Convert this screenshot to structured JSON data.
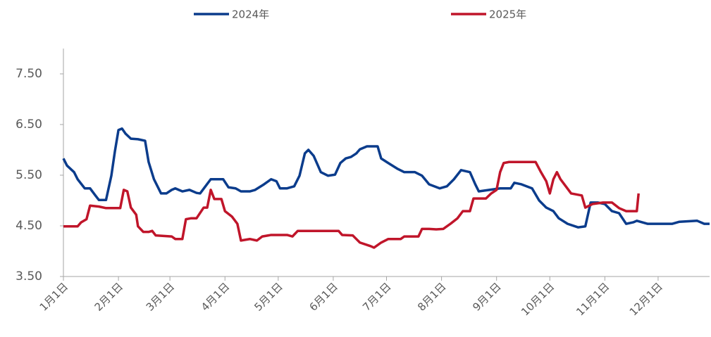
{
  "chart_data": {
    "type": "line",
    "series": [
      {
        "name": "2024年",
        "color": "#0b3c8c",
        "x": [
          0,
          2,
          6,
          8,
          12,
          15,
          18,
          20,
          24,
          27,
          29,
          31,
          33,
          35,
          38,
          42,
          46,
          48,
          51,
          55,
          58,
          61,
          63,
          67,
          71,
          75,
          77,
          80,
          83,
          90,
          93,
          97,
          100,
          105,
          108,
          113,
          117,
          120,
          122,
          126,
          130,
          133,
          136,
          138,
          141,
          145,
          149,
          153,
          156,
          159,
          162,
          165,
          167,
          171,
          177,
          179,
          183,
          188,
          192,
          198,
          202,
          206,
          212,
          216,
          220,
          224,
          229,
          232,
          234,
          240,
          246,
          252,
          254,
          258,
          264,
          268,
          272,
          276,
          279,
          284,
          290,
          294,
          297,
          301,
          305,
          309,
          313,
          317,
          321,
          323,
          329,
          343,
          347,
          357,
          361,
          364
        ],
        "values": [
          5.83,
          5.69,
          5.56,
          5.42,
          5.24,
          5.24,
          5.1,
          5.01,
          5.01,
          5.49,
          5.97,
          6.39,
          6.42,
          6.32,
          6.22,
          6.21,
          6.18,
          5.76,
          5.42,
          5.14,
          5.14,
          5.21,
          5.24,
          5.18,
          5.21,
          5.15,
          5.14,
          5.28,
          5.42,
          5.42,
          5.26,
          5.24,
          5.18,
          5.18,
          5.21,
          5.32,
          5.42,
          5.38,
          5.24,
          5.24,
          5.28,
          5.49,
          5.93,
          6.0,
          5.88,
          5.56,
          5.49,
          5.51,
          5.74,
          5.83,
          5.86,
          5.93,
          6.01,
          6.07,
          6.07,
          5.83,
          5.74,
          5.63,
          5.56,
          5.56,
          5.49,
          5.32,
          5.24,
          5.28,
          5.42,
          5.6,
          5.56,
          5.32,
          5.18,
          5.21,
          5.24,
          5.24,
          5.35,
          5.32,
          5.24,
          5.0,
          4.86,
          4.79,
          4.65,
          4.54,
          4.47,
          4.49,
          4.96,
          4.96,
          4.93,
          4.79,
          4.75,
          4.54,
          4.57,
          4.6,
          4.54,
          4.54,
          4.58,
          4.6,
          4.54,
          4.54
        ]
      },
      {
        "name": "2025年",
        "color": "#c0152a",
        "x": [
          0,
          8,
          10,
          13,
          15,
          20,
          24,
          32,
          34,
          36,
          38,
          41,
          42,
          45,
          48,
          50,
          52,
          61,
          63,
          67,
          69,
          72,
          75,
          79,
          81,
          83,
          85,
          89,
          91,
          95,
          98,
          100,
          105,
          109,
          112,
          117,
          126,
          129,
          132,
          155,
          157,
          163,
          167,
          173,
          175,
          179,
          183,
          190,
          192,
          200,
          202,
          206,
          210,
          214,
          218,
          222,
          225,
          229,
          231,
          238,
          241,
          244,
          246,
          248,
          251,
          266,
          269,
          272,
          274,
          276,
          278,
          280,
          283,
          286,
          292,
          294,
          298,
          304,
          309,
          313,
          317,
          323,
          324
        ],
        "values": [
          4.49,
          4.49,
          4.57,
          4.63,
          4.9,
          4.88,
          4.85,
          4.85,
          5.21,
          5.18,
          4.86,
          4.72,
          4.49,
          4.38,
          4.38,
          4.4,
          4.31,
          4.29,
          4.24,
          4.24,
          4.63,
          4.65,
          4.65,
          4.86,
          4.86,
          5.21,
          5.03,
          5.03,
          4.79,
          4.68,
          4.54,
          4.21,
          4.24,
          4.21,
          4.29,
          4.32,
          4.32,
          4.29,
          4.4,
          4.4,
          4.32,
          4.31,
          4.17,
          4.1,
          4.07,
          4.17,
          4.24,
          4.24,
          4.29,
          4.29,
          4.44,
          4.44,
          4.43,
          4.44,
          4.54,
          4.65,
          4.79,
          4.79,
          5.04,
          5.04,
          5.14,
          5.21,
          5.56,
          5.74,
          5.76,
          5.76,
          5.56,
          5.38,
          5.14,
          5.42,
          5.56,
          5.42,
          5.28,
          5.14,
          5.1,
          4.86,
          4.93,
          4.96,
          4.96,
          4.85,
          4.79,
          4.79,
          5.14
        ]
      }
    ],
    "xlim": [
      0,
      364
    ],
    "xticks": [
      {
        "value": 0,
        "label": "1月1日"
      },
      {
        "value": 31,
        "label": "2月1日"
      },
      {
        "value": 60,
        "label": "3月1日"
      },
      {
        "value": 91,
        "label": "4月1日"
      },
      {
        "value": 121,
        "label": "5月1日"
      },
      {
        "value": 152,
        "label": "6月1日"
      },
      {
        "value": 182,
        "label": "7月1日"
      },
      {
        "value": 213,
        "label": "8月1日"
      },
      {
        "value": 244,
        "label": "9月1日"
      },
      {
        "value": 274,
        "label": "10月1日"
      },
      {
        "value": 305,
        "label": "11月1日"
      },
      {
        "value": 335,
        "label": "12月1日"
      }
    ],
    "ylim": [
      3.5,
      8.0
    ],
    "yticks": [
      {
        "value": 3.5,
        "label": "3.50"
      },
      {
        "value": 4.5,
        "label": "4.50"
      },
      {
        "value": 5.5,
        "label": "5.50"
      },
      {
        "value": 6.5,
        "label": "6.50"
      },
      {
        "value": 7.5,
        "label": "7.50"
      }
    ],
    "legend": "top"
  }
}
